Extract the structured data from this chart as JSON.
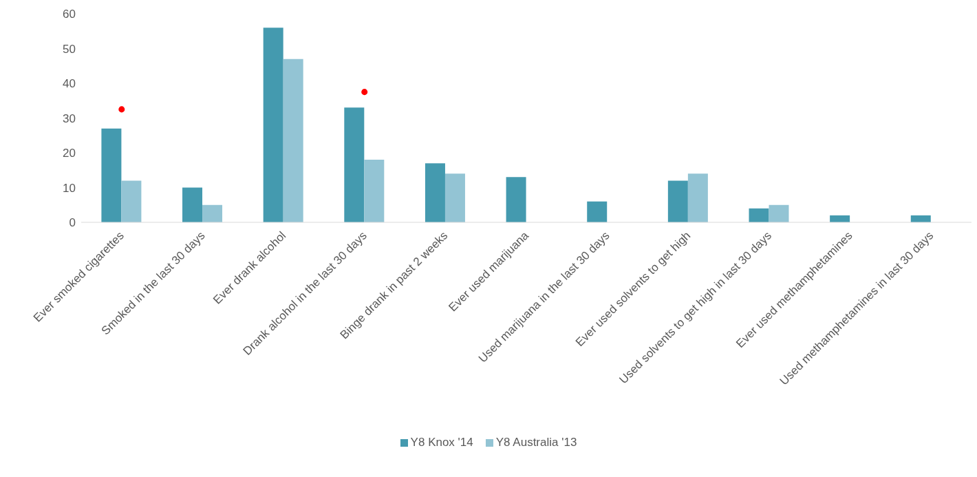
{
  "chart_data": {
    "type": "bar",
    "categories": [
      "Ever smoked cigarettes",
      "Smoked in the last 30 days",
      "Ever drank alcohol",
      "Drank alcohol in the last 30 days",
      "Binge drank in past 2 weeks",
      "Ever used marijuana",
      "Used marijuana in the last 30 days",
      "Ever used solvents to get high",
      "Used solvents to get high in last 30 days",
      "Ever used methamphetamines",
      "Used methamphetamines in last 30 days"
    ],
    "series": [
      {
        "name": "Y8 Knox '14",
        "color": "#449aaf",
        "values": [
          27,
          10,
          56,
          33,
          17,
          13,
          6,
          12,
          4,
          2,
          2
        ]
      },
      {
        "name": "Y8 Australia '13",
        "color": "#93c4d4",
        "values": [
          12,
          5,
          47,
          18,
          14,
          null,
          null,
          14,
          5,
          null,
          null
        ]
      },
      {
        "type": "scatter",
        "color": "#ff0000",
        "x": [
          "Ever smoked cigarettes",
          "Drank alcohol in the last 30 days"
        ],
        "values": [
          32.5,
          37.5
        ]
      }
    ],
    "ylim": [
      0,
      60
    ],
    "yticks": [
      0,
      10,
      20,
      30,
      40,
      50,
      60
    ],
    "grid": false,
    "legend": "bottom",
    "marker": "circle"
  }
}
